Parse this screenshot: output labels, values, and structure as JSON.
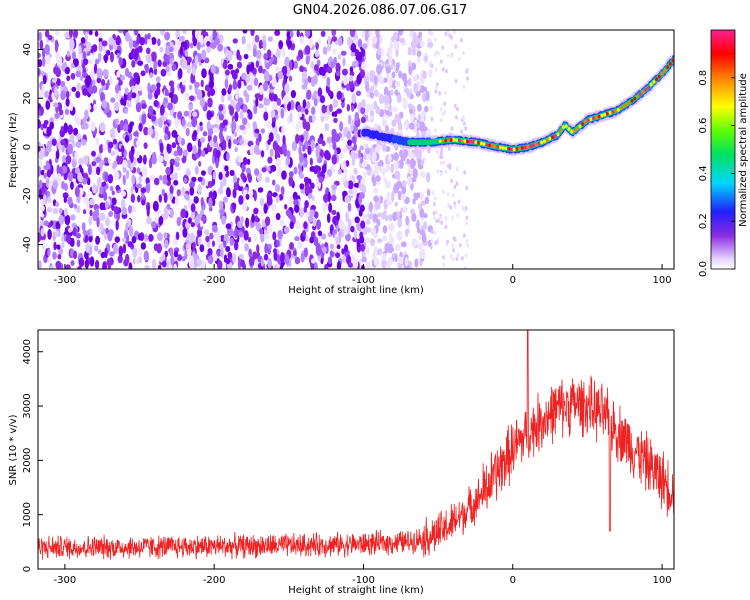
{
  "title": "GN04.2026.086.07.06.G17",
  "chart_data": [
    {
      "type": "heatmap",
      "xlabel": "Height of straight line (km)",
      "ylabel": "Frequency (Hz)",
      "xlim": [
        -318,
        108
      ],
      "ylim": [
        -50,
        48
      ],
      "xticks": [
        -300,
        -200,
        -100,
        0,
        100
      ],
      "yticks": [
        -40,
        -20,
        0,
        20,
        40
      ],
      "colorbar": {
        "label": "Normalized spectral amplitude",
        "range": [
          0.0,
          1.0
        ],
        "ticks": [
          0.0,
          0.2,
          0.4,
          0.6,
          0.8
        ],
        "colormap": "rainbow (white-purple-blue-cyan-green-yellow-orange-red-pink)"
      },
      "ridge": {
        "description": "frequency track of strongest signal",
        "x": [
          -100,
          -85,
          -70,
          -55,
          -40,
          -25,
          -10,
          0,
          10,
          20,
          30,
          35,
          40,
          50,
          60,
          70,
          80,
          90,
          100,
          108
        ],
        "y": [
          6,
          4,
          2,
          2,
          3,
          2,
          0,
          -1,
          0,
          2,
          5,
          9,
          6,
          11,
          13,
          15,
          19,
          24,
          30,
          36
        ]
      },
      "noise_region": {
        "x_from": -318,
        "x_to": -55
      }
    },
    {
      "type": "line",
      "xlabel": "Height of straight line (km)",
      "ylabel": "SNR (10 * v/v)",
      "xlim": [
        -318,
        108
      ],
      "ylim": [
        0,
        4400
      ],
      "xticks": [
        -300,
        -200,
        -100,
        0,
        100
      ],
      "yticks": [
        0,
        1000,
        2000,
        3000,
        4000
      ],
      "series": [
        {
          "color": "#ee2222",
          "x": [
            -318,
            -250,
            -200,
            -150,
            -100,
            -70,
            -50,
            -40,
            -30,
            -20,
            -10,
            0,
            10,
            20,
            30,
            40,
            50,
            60,
            70,
            80,
            90,
            100,
            108
          ],
          "y": [
            400,
            400,
            420,
            430,
            460,
            500,
            650,
            850,
            1100,
            1400,
            1800,
            2200,
            2500,
            2750,
            2950,
            3050,
            3000,
            2850,
            2550,
            2250,
            1950,
            1650,
            1450
          ]
        }
      ],
      "spikes": [
        {
          "x": 10,
          "y": 4400
        },
        {
          "x": 65,
          "y": 700
        }
      ]
    }
  ]
}
